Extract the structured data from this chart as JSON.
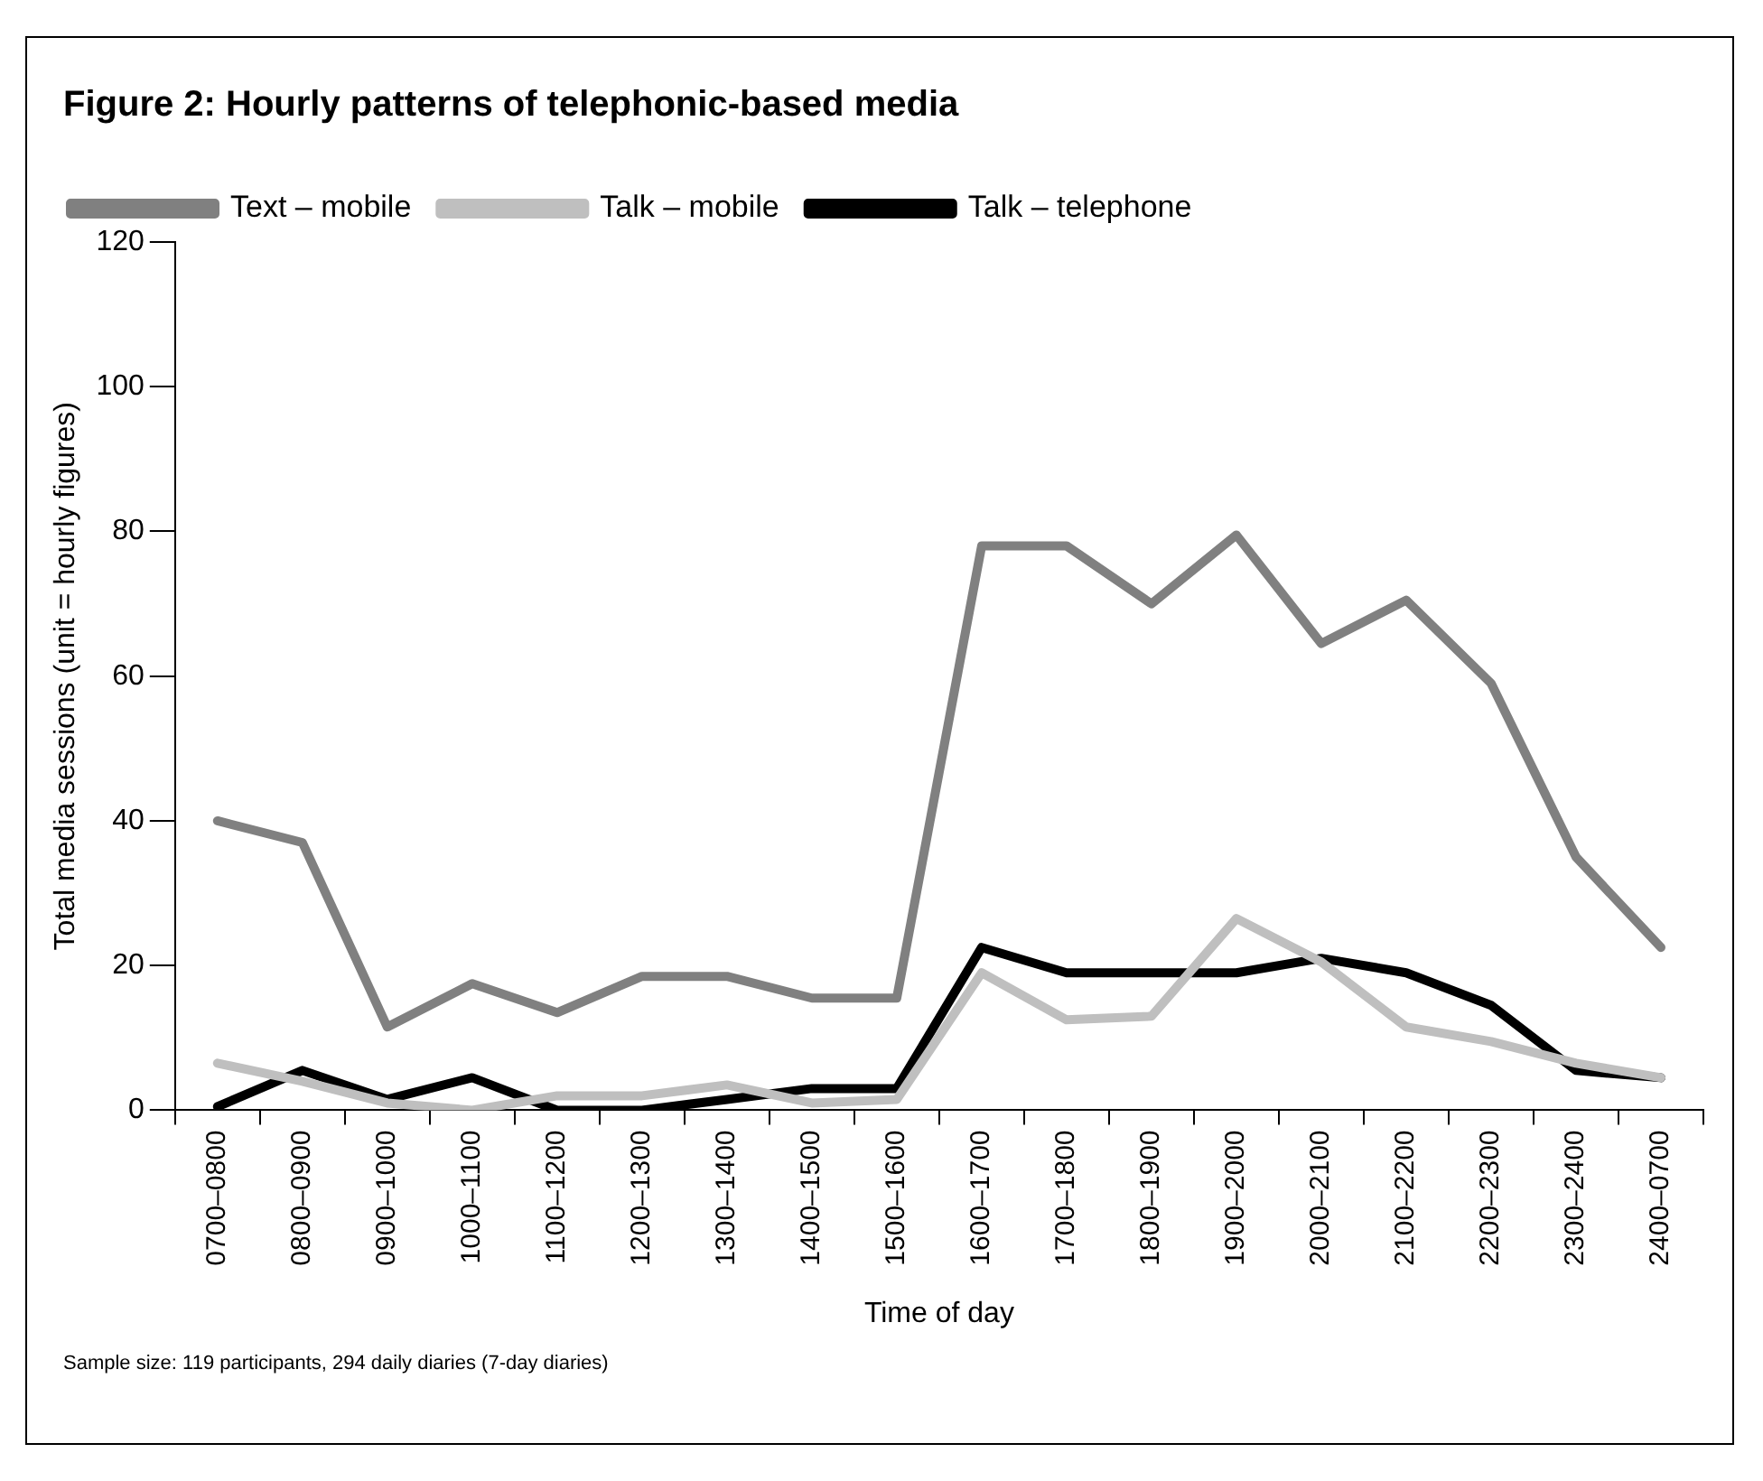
{
  "chart_data": {
    "type": "line",
    "title": "Figure 2: Hourly patterns of telephonic-based media",
    "xlabel": "Time of day",
    "ylabel": "Total media sessions (unit = hourly figures)",
    "categories": [
      "0700–0800",
      "0800–0900",
      "0900–1000",
      "1000–1100",
      "1100–1200",
      "1200–1300",
      "1300–1400",
      "1400–1500",
      "1500–1600",
      "1600–1700",
      "1700–1800",
      "1800–1900",
      "1900–2000",
      "2000–2100",
      "2100–2200",
      "2200–2300",
      "2300–2400",
      "2400–0700"
    ],
    "series": [
      {
        "name": "Text – mobile",
        "color": "#808080",
        "values": [
          40,
          37,
          11.5,
          17.5,
          13.5,
          18.5,
          18.5,
          15.5,
          15.5,
          78,
          78,
          70,
          79.5,
          64.5,
          70.5,
          59,
          35,
          22.5
        ]
      },
      {
        "name": "Talk – mobile",
        "color": "#bfbfbf",
        "values": [
          6.5,
          4,
          1,
          0,
          2,
          2,
          3.5,
          1,
          1.5,
          19,
          12.5,
          13,
          26.5,
          20.5,
          11.5,
          9.5,
          6.5,
          4.5
        ]
      },
      {
        "name": "Talk – telephone",
        "color": "#000000",
        "values": [
          0.5,
          5.5,
          1.5,
          4.5,
          0,
          0,
          1.5,
          3,
          3,
          22.5,
          19,
          19,
          19,
          21,
          19,
          14.5,
          5.5,
          4.5
        ]
      }
    ],
    "ylim": [
      0,
      120
    ],
    "yticks": [
      0,
      20,
      40,
      60,
      80,
      100,
      120
    ],
    "grid": false,
    "legend": "top left",
    "marker": "none",
    "line_style": "solid",
    "annotations": [
      "Sample size: 119 participants, 294 daily diaries (7-day diaries)"
    ]
  }
}
